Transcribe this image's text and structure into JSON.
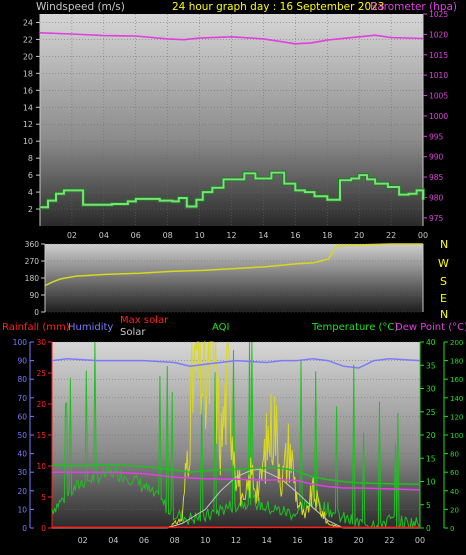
{
  "colors": {
    "background": "#000000",
    "wind": "#7fdc7f",
    "barometer": "#e040e0",
    "direction": "#d8d820",
    "rainfall": "#ff2020",
    "humidity": "#7a7aff",
    "solar": "#d8d820",
    "maxsolar": "#c8c8c8",
    "aqi": "#20c020",
    "temperature": "#20c020",
    "dewpoint": "#e040e0",
    "title": "#ffff00",
    "axis_text_gray": "#c8c8c8",
    "green_axis": "#20e020"
  },
  "header": {
    "title": "24 hour graph day : 16 September 2023",
    "wind_label": "Windspeed (m/s)",
    "barometer_label": "Barometer (hpa)"
  },
  "direction_labels": [
    "N",
    "W",
    "S",
    "E",
    "N"
  ],
  "legend": {
    "rainfall": "Rainfall (mm)",
    "humidity": "Humidity",
    "max_solar": "Max solar",
    "solar": "Solar",
    "aqi": "AQI",
    "temperature": "Temperature (°C)",
    "dewpoint": "Dew Point (°C)"
  },
  "chart_data": [
    {
      "type": "line",
      "title": "24 hour graph day : 16 September 2023",
      "x_ticks": [
        "02",
        "04",
        "06",
        "08",
        "10",
        "12",
        "14",
        "16",
        "18",
        "20",
        "22",
        "00"
      ],
      "x_hours": [
        0,
        24
      ],
      "ylabel_left": "Windspeed (m/s)",
      "ylim_left": [
        0,
        25
      ],
      "yticks_left": [
        2,
        4,
        6,
        8,
        10,
        12,
        14,
        16,
        18,
        20,
        22,
        24
      ],
      "ylabel_right": "Barometer (hpa)",
      "ylim_right": [
        973,
        1025
      ],
      "yticks_right": [
        975,
        980,
        985,
        990,
        995,
        1000,
        1005,
        1010,
        1015,
        1020,
        1025
      ],
      "series": [
        {
          "name": "Windspeed (m/s)",
          "axis": "left",
          "x": [
            0,
            0.5,
            1,
            1.5,
            2,
            2.7,
            3.5,
            4.5,
            5.5,
            6,
            6.7,
            7.5,
            8.3,
            8.7,
            9.2,
            9.8,
            10.2,
            10.8,
            11.5,
            12,
            12.8,
            13.5,
            14.5,
            15.3,
            16,
            16.6,
            17.2,
            18,
            18.8,
            19.5,
            20,
            20.5,
            21,
            21.8,
            22.5,
            23.1,
            23.6,
            24
          ],
          "values": [
            2.2,
            3.0,
            3.8,
            4.2,
            4.2,
            2.5,
            2.5,
            2.6,
            2.9,
            3.2,
            3.2,
            3.0,
            2.9,
            3.3,
            2.3,
            3.1,
            4.0,
            4.5,
            5.5,
            5.5,
            6.2,
            5.6,
            6.3,
            5.0,
            4.2,
            4.0,
            3.5,
            3.1,
            5.4,
            5.6,
            6.0,
            5.5,
            5.0,
            4.6,
            3.7,
            3.8,
            4.2,
            3.1
          ]
        },
        {
          "name": "Barometer (hpa)",
          "axis": "right",
          "x": [
            0,
            2,
            4,
            6,
            8,
            9,
            10,
            12,
            14,
            15,
            16,
            17,
            18,
            20,
            21,
            22,
            24
          ],
          "values": [
            1020.4,
            1020.1,
            1019.7,
            1019.6,
            1018.9,
            1018.7,
            1019.1,
            1019.4,
            1018.9,
            1018.3,
            1017.7,
            1017.9,
            1018.6,
            1019.4,
            1019.8,
            1019.2,
            1019.0
          ]
        }
      ]
    },
    {
      "type": "line",
      "name": "wind direction",
      "x_hours": [
        0,
        24
      ],
      "ylim": [
        0,
        360
      ],
      "yticks": [
        0,
        90,
        180,
        270,
        360
      ],
      "right_labels": [
        "N",
        "W",
        "S",
        "E",
        "N"
      ],
      "series": [
        {
          "name": "Wind direction (degrees)",
          "x": [
            0,
            0.5,
            1,
            2,
            4,
            6,
            8,
            10,
            12,
            14,
            16,
            17,
            18,
            18.5,
            20,
            22,
            24
          ],
          "values": [
            140,
            160,
            175,
            190,
            200,
            205,
            215,
            220,
            230,
            240,
            255,
            260,
            280,
            350,
            355,
            360,
            362
          ]
        }
      ]
    },
    {
      "type": "line",
      "name": "multi-sensor",
      "x_ticks": [
        "02",
        "04",
        "06",
        "08",
        "10",
        "12",
        "14",
        "16",
        "18",
        "20",
        "22",
        "00"
      ],
      "x_hours": [
        0,
        24
      ],
      "axes": {
        "humidity": {
          "ylim": [
            0,
            100
          ],
          "ticks": [
            0,
            10,
            20,
            30,
            40,
            50,
            60,
            70,
            80,
            90,
            100
          ]
        },
        "rainfall": {
          "ylim": [
            0,
            30
          ],
          "ticks": [
            0,
            5,
            10,
            15,
            20,
            25,
            30
          ]
        },
        "temperature": {
          "ylim": [
            0,
            40
          ],
          "ticks": [
            0,
            5,
            10,
            15,
            20,
            25,
            30,
            35,
            40
          ]
        },
        "aqi": {
          "ylim": [
            0,
            200
          ],
          "ticks": [
            0,
            20,
            40,
            60,
            80,
            100,
            120,
            140,
            160,
            180,
            200
          ]
        }
      },
      "series": [
        {
          "name": "Humidity",
          "axis": "humidity",
          "x": [
            0,
            1,
            3,
            6,
            8,
            9,
            10,
            12,
            14,
            15,
            16,
            17,
            18,
            19,
            20,
            21,
            22,
            24
          ],
          "values": [
            90,
            91,
            90,
            90,
            89,
            87,
            88,
            90,
            89,
            90,
            90,
            91,
            90,
            87,
            86,
            90,
            91,
            90
          ]
        },
        {
          "name": "Temperature (°C)",
          "axis": "temperature",
          "x": [
            0,
            2,
            4,
            6,
            8,
            9,
            10,
            12,
            14,
            15,
            16,
            17,
            18,
            19,
            20,
            22,
            24
          ],
          "values": [
            13.5,
            13.4,
            13.6,
            13.2,
            12.5,
            12.0,
            12.3,
            12.6,
            13.0,
            12.9,
            12.2,
            11.0,
            10.4,
            10.0,
            9.7,
            9.5,
            9.4
          ]
        },
        {
          "name": "Dew Point (°C)",
          "axis": "temperature",
          "x": [
            0,
            2,
            4,
            6,
            8,
            10,
            12,
            14,
            15,
            16,
            17,
            18,
            19,
            20,
            22,
            24
          ],
          "values": [
            12.0,
            12.0,
            12.0,
            11.7,
            10.9,
            10.6,
            10.5,
            10.3,
            10.4,
            10.2,
            9.4,
            8.9,
            8.6,
            8.6,
            8.4,
            8.2
          ]
        },
        {
          "name": "Solar",
          "axis": "aqi",
          "x": [
            0,
            7.5,
            8.5,
            9,
            9.5,
            10,
            10.5,
            11,
            11.5,
            12,
            12.5,
            13,
            13.5,
            14,
            14.5,
            15,
            15.5,
            16,
            16.5,
            17,
            17.5,
            18,
            18.5,
            19,
            24
          ],
          "values": [
            0,
            0,
            10,
            120,
            200,
            140,
            200,
            90,
            160,
            70,
            20,
            60,
            40,
            90,
            120,
            50,
            90,
            30,
            10,
            40,
            20,
            5,
            2,
            0,
            0
          ]
        },
        {
          "name": "Max solar",
          "axis": "aqi",
          "x": [
            0,
            7.5,
            8.5,
            10,
            11,
            12,
            13,
            13.5,
            14,
            15,
            16,
            17,
            18,
            19,
            24
          ],
          "values": [
            0,
            0,
            5,
            20,
            40,
            55,
            62,
            63,
            60,
            52,
            38,
            22,
            8,
            0,
            0
          ]
        },
        {
          "name": "AQI",
          "axis": "aqi",
          "x": [
            0,
            1,
            2,
            3,
            4,
            5,
            6,
            7,
            8,
            9,
            10,
            11,
            12,
            13,
            14,
            15,
            16,
            17,
            18,
            19,
            20,
            21,
            22,
            23,
            24
          ],
          "values": [
            20,
            35,
            50,
            55,
            60,
            55,
            45,
            30,
            15,
            10,
            12,
            20,
            25,
            30,
            22,
            18,
            15,
            30,
            20,
            10,
            5,
            5,
            8,
            6,
            5
          ]
        },
        {
          "name": "Rainfall (mm)",
          "axis": "rainfall",
          "x": [
            0,
            24
          ],
          "values": [
            0.1,
            0.1
          ]
        }
      ]
    }
  ]
}
